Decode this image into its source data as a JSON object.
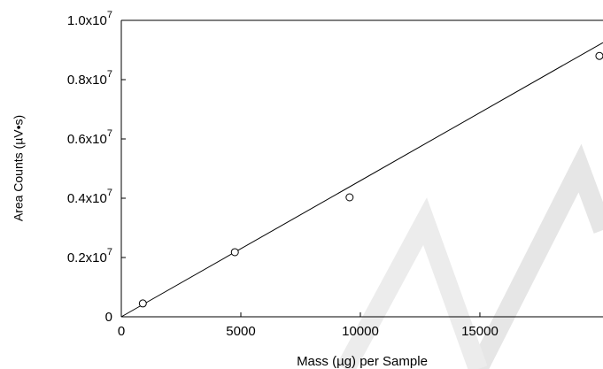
{
  "chart_data": {
    "type": "scatter",
    "x_label": "Mass (µg) per Sample",
    "y_label": "Area Counts (µV•s)",
    "series": [
      {
        "x": [
          900,
          4750,
          9550,
          20000
        ],
        "values": [
          450000,
          2180000,
          4030000,
          8800000
        ],
        "color": "#000000"
      }
    ],
    "fit_line": {
      "x": [
        0,
        20150
      ],
      "y": [
        0,
        9250000
      ],
      "color": "#000000"
    },
    "xlim": [
      0,
      20150
    ],
    "xticks": [
      0,
      5000,
      10000,
      15000
    ],
    "ylim": [
      0,
      10000000
    ],
    "yticks": [
      0,
      {
        "value": 2000000,
        "label": "0.2x10",
        "superscript": "7"
      },
      {
        "value": 4000000,
        "label": "0.4x10",
        "superscript": "7"
      },
      {
        "value": 6000000,
        "label": "0.6x10",
        "superscript": "7"
      },
      {
        "value": 8000000,
        "label": "0.8x10",
        "superscript": "7"
      },
      {
        "value": 10000000,
        "label": "1.0x10",
        "superscript": "7"
      }
    ]
  }
}
